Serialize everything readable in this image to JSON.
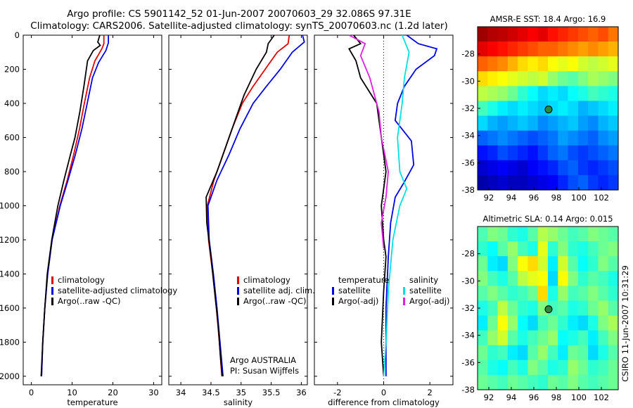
{
  "header": {
    "line1": "Argo profile: CS 5901142_52 01-Jun-2007 20070603_29 32.086S 97.31E",
    "line2": "Climatology: CARS2006. Satellite-adjusted climatology: synTS_20070603.nc (1.2d later)"
  },
  "side_label": "CSIRO 11-Jun-2007 10:31:29",
  "colors": {
    "red": "#e00000",
    "blue": "#0000e6",
    "black": "#000000",
    "cyan": "#00e0e0",
    "magenta": "#e020e0"
  },
  "chart_data": [
    {
      "type": "line",
      "panel": "temperature",
      "xlabel": "temperature",
      "xlim": [
        -2,
        32
      ],
      "ylim": [
        0,
        2050
      ],
      "y_reversed": true,
      "xticks": [
        0,
        10,
        20,
        30
      ],
      "yticks": [
        0,
        200,
        400,
        600,
        800,
        1000,
        1200,
        1400,
        1600,
        1800,
        2000
      ],
      "legend": [
        "climatology",
        "satellite-adjusted climatology",
        "Argo(..raw -QC)"
      ],
      "series": [
        {
          "name": "climatology",
          "color": "red",
          "points": [
            [
              17.8,
              0
            ],
            [
              17.8,
              50
            ],
            [
              17.3,
              80
            ],
            [
              15.6,
              150
            ],
            [
              14.3,
              250
            ],
            [
              13.0,
              400
            ],
            [
              11.8,
              550
            ],
            [
              10.4,
              700
            ],
            [
              8.8,
              850
            ],
            [
              7.0,
              1000
            ],
            [
              5.1,
              1200
            ],
            [
              4.0,
              1400
            ],
            [
              3.3,
              1600
            ],
            [
              2.8,
              1800
            ],
            [
              2.5,
              2000
            ]
          ]
        },
        {
          "name": "satellite-adjusted climatology",
          "color": "blue",
          "points": [
            [
              18.9,
              0
            ],
            [
              18.9,
              45
            ],
            [
              18.3,
              90
            ],
            [
              16.5,
              160
            ],
            [
              15.0,
              250
            ],
            [
              13.7,
              400
            ],
            [
              12.4,
              550
            ],
            [
              10.8,
              700
            ],
            [
              9.0,
              850
            ],
            [
              7.1,
              1000
            ],
            [
              5.1,
              1200
            ],
            [
              4.0,
              1400
            ],
            [
              3.3,
              1600
            ],
            [
              2.8,
              1800
            ],
            [
              2.5,
              2000
            ]
          ]
        },
        {
          "name": "Argo(..raw -QC)",
          "color": "black",
          "points": [
            [
              16.8,
              0
            ],
            [
              16.3,
              40
            ],
            [
              16.9,
              60
            ],
            [
              15.2,
              90
            ],
            [
              13.8,
              150
            ],
            [
              12.9,
              300
            ],
            [
              11.9,
              450
            ],
            [
              10.7,
              600
            ],
            [
              9.6,
              700
            ],
            [
              8.0,
              850
            ],
            [
              6.5,
              1000
            ],
            [
              5.0,
              1200
            ],
            [
              3.9,
              1400
            ],
            [
              3.3,
              1600
            ],
            [
              2.8,
              1800
            ],
            [
              2.4,
              2000
            ]
          ]
        }
      ]
    },
    {
      "type": "line",
      "panel": "salinity",
      "xlabel": "salinity",
      "xlim": [
        33.8,
        36.1
      ],
      "ylim": [
        0,
        2050
      ],
      "y_reversed": true,
      "xticks": [
        34,
        34.5,
        35,
        35.5,
        36
      ],
      "yticks": [
        0,
        200,
        400,
        600,
        800,
        1000,
        1200,
        1400,
        1600,
        1800,
        2000
      ],
      "legend": [
        "climatology",
        "satellite adj. clim.",
        "Argo(..raw -QC)"
      ],
      "annotation": [
        "Argo AUSTRALIA",
        "PI: Susan Wijffels"
      ],
      "series": [
        {
          "name": "climatology",
          "color": "red",
          "points": [
            [
              35.8,
              0
            ],
            [
              35.78,
              50
            ],
            [
              35.6,
              100
            ],
            [
              35.4,
              200
            ],
            [
              35.2,
              300
            ],
            [
              35.02,
              400
            ],
            [
              34.85,
              550
            ],
            [
              34.7,
              700
            ],
            [
              34.55,
              850
            ],
            [
              34.44,
              1000
            ],
            [
              34.46,
              1200
            ],
            [
              34.53,
              1400
            ],
            [
              34.59,
              1600
            ],
            [
              34.64,
              1800
            ],
            [
              34.68,
              2000
            ]
          ]
        },
        {
          "name": "satellite adj. clim.",
          "color": "blue",
          "points": [
            [
              36.02,
              0
            ],
            [
              36.05,
              40
            ],
            [
              35.85,
              100
            ],
            [
              35.65,
              200
            ],
            [
              35.42,
              300
            ],
            [
              35.2,
              400
            ],
            [
              34.98,
              550
            ],
            [
              34.8,
              700
            ],
            [
              34.6,
              850
            ],
            [
              34.45,
              1000
            ],
            [
              34.47,
              1200
            ],
            [
              34.54,
              1400
            ],
            [
              34.6,
              1600
            ],
            [
              34.65,
              1800
            ],
            [
              34.7,
              2000
            ]
          ]
        },
        {
          "name": "Argo(..raw -QC)",
          "color": "black",
          "points": [
            [
              35.55,
              0
            ],
            [
              35.45,
              50
            ],
            [
              35.42,
              100
            ],
            [
              35.25,
              200
            ],
            [
              35.05,
              350
            ],
            [
              34.9,
              500
            ],
            [
              34.75,
              650
            ],
            [
              34.6,
              800
            ],
            [
              34.42,
              950
            ],
            [
              34.43,
              1100
            ],
            [
              34.5,
              1300
            ],
            [
              34.56,
              1500
            ],
            [
              34.62,
              1700
            ],
            [
              34.66,
              1900
            ],
            [
              34.69,
              2000
            ]
          ]
        }
      ]
    },
    {
      "type": "line",
      "panel": "difference",
      "xlabel": "difference from climatology",
      "xlim": [
        -3,
        3
      ],
      "ylim": [
        0,
        2050
      ],
      "y_reversed": true,
      "xticks": [
        -2,
        0,
        2
      ],
      "yticks": [
        0,
        200,
        400,
        600,
        800,
        1000,
        1200,
        1400,
        1600,
        1800,
        2000
      ],
      "legend_left": [
        "temperature",
        "satellite",
        "Argo(-adj)"
      ],
      "legend_right": [
        "salinity",
        "satellite",
        "Argo(-adj)"
      ],
      "series": [
        {
          "name": "temperature satellite",
          "color": "blue",
          "points": [
            [
              1.0,
              0
            ],
            [
              1.5,
              50
            ],
            [
              2.3,
              80
            ],
            [
              2.2,
              120
            ],
            [
              1.4,
              200
            ],
            [
              0.9,
              300
            ],
            [
              0.6,
              400
            ],
            [
              0.5,
              500
            ],
            [
              1.2,
              620
            ],
            [
              1.3,
              760
            ],
            [
              0.9,
              860
            ],
            [
              0.5,
              950
            ],
            [
              0.3,
              1100
            ],
            [
              0.2,
              1300
            ],
            [
              0.1,
              1600
            ],
            [
              0.1,
              2000
            ]
          ]
        },
        {
          "name": "temperature Argo(-adj)",
          "color": "black",
          "points": [
            [
              -1.3,
              0
            ],
            [
              -1.0,
              50
            ],
            [
              -1.5,
              80
            ],
            [
              -1.2,
              150
            ],
            [
              -1.0,
              250
            ],
            [
              -0.3,
              400
            ],
            [
              -0.1,
              600
            ],
            [
              0.1,
              800
            ],
            [
              -0.1,
              1000
            ],
            [
              0.0,
              1200
            ],
            [
              0.1,
              1300
            ],
            [
              0.0,
              1500
            ],
            [
              -0.1,
              1800
            ],
            [
              0.0,
              2000
            ]
          ]
        },
        {
          "name": "salinity satellite",
          "color": "cyan",
          "points": [
            [
              0.8,
              0
            ],
            [
              1.1,
              100
            ],
            [
              0.9,
              250
            ],
            [
              0.8,
              400
            ],
            [
              0.6,
              600
            ],
            [
              0.7,
              800
            ],
            [
              1.0,
              900
            ],
            [
              0.7,
              1000
            ],
            [
              0.4,
              1200
            ],
            [
              0.2,
              1500
            ],
            [
              0.1,
              1800
            ],
            [
              0.0,
              2000
            ]
          ]
        },
        {
          "name": "salinity Argo(-adj)",
          "color": "magenta",
          "points": [
            [
              -1.5,
              0
            ],
            [
              -0.8,
              50
            ],
            [
              -1.0,
              120
            ],
            [
              -0.6,
              250
            ],
            [
              -0.2,
              450
            ],
            [
              -0.1,
              600
            ],
            [
              0.2,
              800
            ],
            [
              0.1,
              950
            ],
            [
              -0.1,
              1100
            ],
            [
              0.0,
              1250
            ]
          ]
        }
      ]
    },
    {
      "type": "heatmap",
      "panel": "sst-map",
      "title": "AMSR-E SST: 18.4 Argo: 16.9",
      "xlim": [
        91,
        103.5
      ],
      "ylim": [
        -38,
        -26
      ],
      "xticks": [
        92,
        94,
        96,
        98,
        100,
        102
      ],
      "yticks": [
        -28,
        -30,
        -32,
        -34,
        -36,
        -38
      ],
      "marker": [
        97.31,
        -32.086
      ],
      "values": [
        [
          0.97,
          0.95,
          0.94,
          0.92,
          0.9,
          0.88,
          0.9,
          0.86,
          0.84,
          0.82,
          0.8,
          0.78,
          0.8,
          0.76
        ],
        [
          0.9,
          0.88,
          0.86,
          0.84,
          0.82,
          0.8,
          0.78,
          0.78,
          0.76,
          0.74,
          0.72,
          0.74,
          0.72,
          0.7
        ],
        [
          0.78,
          0.76,
          0.74,
          0.7,
          0.66,
          0.64,
          0.66,
          0.62,
          0.6,
          0.62,
          0.58,
          0.56,
          0.58,
          0.6
        ],
        [
          0.66,
          0.64,
          0.62,
          0.6,
          0.58,
          0.56,
          0.58,
          0.52,
          0.48,
          0.46,
          0.5,
          0.54,
          0.52,
          0.5
        ],
        [
          0.56,
          0.54,
          0.52,
          0.48,
          0.42,
          0.38,
          0.34,
          0.36,
          0.34,
          0.38,
          0.4,
          0.44,
          0.42,
          0.4
        ],
        [
          0.44,
          0.4,
          0.36,
          0.34,
          0.36,
          0.34,
          0.32,
          0.34,
          0.36,
          0.34,
          0.3,
          0.32,
          0.34,
          0.36
        ],
        [
          0.34,
          0.3,
          0.28,
          0.3,
          0.32,
          0.3,
          0.26,
          0.28,
          0.3,
          0.32,
          0.28,
          0.26,
          0.3,
          0.32
        ],
        [
          0.22,
          0.24,
          0.26,
          0.24,
          0.22,
          0.2,
          0.22,
          0.24,
          0.28,
          0.26,
          0.24,
          0.22,
          0.26,
          0.28
        ],
        [
          0.14,
          0.16,
          0.2,
          0.18,
          0.16,
          0.14,
          0.18,
          0.22,
          0.24,
          0.2,
          0.18,
          0.2,
          0.22,
          0.24
        ],
        [
          0.08,
          0.1,
          0.12,
          0.1,
          0.08,
          0.12,
          0.14,
          0.16,
          0.2,
          0.22,
          0.18,
          0.16,
          0.18,
          0.2
        ],
        [
          0.04,
          0.06,
          0.08,
          0.06,
          0.06,
          0.08,
          0.1,
          0.12,
          0.16,
          0.2,
          0.22,
          0.18,
          0.16,
          0.18
        ]
      ]
    },
    {
      "type": "heatmap",
      "panel": "sla-map",
      "title": "Altimetric SLA: 0.14 Argo: 0.015",
      "xlim": [
        91,
        103.5
      ],
      "ylim": [
        -38,
        -26
      ],
      "xticks": [
        92,
        94,
        96,
        98,
        100,
        102
      ],
      "yticks": [
        -28,
        -30,
        -32,
        -34,
        -36,
        -38
      ],
      "marker": [
        97.31,
        -32.086
      ],
      "values": [
        [
          0.45,
          0.5,
          0.48,
          0.42,
          0.4,
          0.46,
          0.55,
          0.52,
          0.48,
          0.44,
          0.46,
          0.5,
          0.48,
          0.46
        ],
        [
          0.42,
          0.38,
          0.46,
          0.52,
          0.44,
          0.4,
          0.6,
          0.42,
          0.5,
          0.42,
          0.4,
          0.44,
          0.48,
          0.5
        ],
        [
          0.48,
          0.36,
          0.34,
          0.5,
          0.62,
          0.66,
          0.58,
          0.36,
          0.58,
          0.46,
          0.38,
          0.42,
          0.5,
          0.46
        ],
        [
          0.5,
          0.44,
          0.4,
          0.46,
          0.56,
          0.6,
          0.62,
          0.34,
          0.62,
          0.5,
          0.42,
          0.46,
          0.44,
          0.4
        ],
        [
          0.46,
          0.5,
          0.46,
          0.42,
          0.44,
          0.48,
          0.66,
          0.4,
          0.52,
          0.44,
          0.46,
          0.5,
          0.46,
          0.42
        ],
        [
          0.4,
          0.44,
          0.56,
          0.48,
          0.42,
          0.4,
          0.5,
          0.44,
          0.46,
          0.4,
          0.42,
          0.48,
          0.52,
          0.46
        ],
        [
          0.36,
          0.48,
          0.62,
          0.52,
          0.38,
          0.34,
          0.44,
          0.48,
          0.42,
          0.36,
          0.34,
          0.4,
          0.5,
          0.54
        ],
        [
          0.44,
          0.52,
          0.58,
          0.46,
          0.4,
          0.44,
          0.48,
          0.52,
          0.38,
          0.4,
          0.44,
          0.36,
          0.44,
          0.5
        ],
        [
          0.48,
          0.42,
          0.44,
          0.36,
          0.34,
          0.46,
          0.52,
          0.44,
          0.36,
          0.48,
          0.46,
          0.34,
          0.4,
          0.46
        ],
        [
          0.46,
          0.4,
          0.38,
          0.44,
          0.4,
          0.5,
          0.46,
          0.4,
          0.42,
          0.52,
          0.48,
          0.42,
          0.44,
          0.48
        ],
        [
          0.48,
          0.46,
          0.44,
          0.48,
          0.46,
          0.44,
          0.42,
          0.48,
          0.46,
          0.5,
          0.46,
          0.44,
          0.46,
          0.48
        ]
      ]
    }
  ]
}
